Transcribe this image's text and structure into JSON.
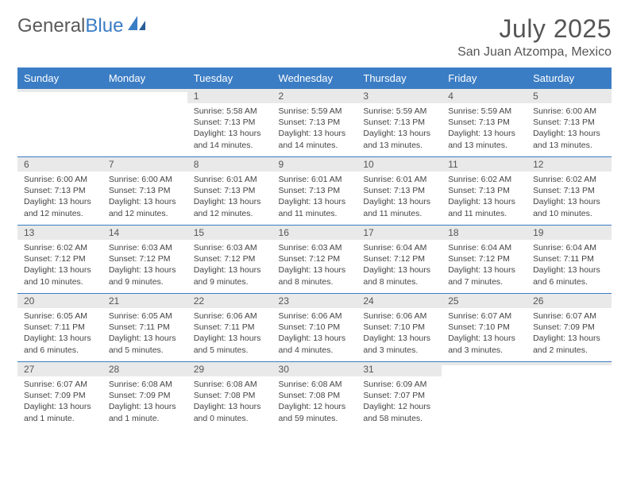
{
  "logo": {
    "text1": "General",
    "text2": "Blue"
  },
  "title": "July 2025",
  "location": "San Juan Atzompa, Mexico",
  "colors": {
    "header_bg": "#3b7dc4",
    "header_fg": "#ffffff",
    "daynum_bg": "#e9e9e9",
    "border": "#3b7dc4",
    "text": "#444444",
    "title_text": "#555555"
  },
  "fonts": {
    "title_size_pt": 24,
    "location_size_pt": 12,
    "day_header_size_pt": 10,
    "cell_size_pt": 8
  },
  "day_headers": [
    "Sunday",
    "Monday",
    "Tuesday",
    "Wednesday",
    "Thursday",
    "Friday",
    "Saturday"
  ],
  "weeks": [
    [
      {
        "n": "",
        "sr": "",
        "ss": "",
        "dl": ""
      },
      {
        "n": "",
        "sr": "",
        "ss": "",
        "dl": ""
      },
      {
        "n": "1",
        "sr": "Sunrise: 5:58 AM",
        "ss": "Sunset: 7:13 PM",
        "dl": "Daylight: 13 hours and 14 minutes."
      },
      {
        "n": "2",
        "sr": "Sunrise: 5:59 AM",
        "ss": "Sunset: 7:13 PM",
        "dl": "Daylight: 13 hours and 14 minutes."
      },
      {
        "n": "3",
        "sr": "Sunrise: 5:59 AM",
        "ss": "Sunset: 7:13 PM",
        "dl": "Daylight: 13 hours and 13 minutes."
      },
      {
        "n": "4",
        "sr": "Sunrise: 5:59 AM",
        "ss": "Sunset: 7:13 PM",
        "dl": "Daylight: 13 hours and 13 minutes."
      },
      {
        "n": "5",
        "sr": "Sunrise: 6:00 AM",
        "ss": "Sunset: 7:13 PM",
        "dl": "Daylight: 13 hours and 13 minutes."
      }
    ],
    [
      {
        "n": "6",
        "sr": "Sunrise: 6:00 AM",
        "ss": "Sunset: 7:13 PM",
        "dl": "Daylight: 13 hours and 12 minutes."
      },
      {
        "n": "7",
        "sr": "Sunrise: 6:00 AM",
        "ss": "Sunset: 7:13 PM",
        "dl": "Daylight: 13 hours and 12 minutes."
      },
      {
        "n": "8",
        "sr": "Sunrise: 6:01 AM",
        "ss": "Sunset: 7:13 PM",
        "dl": "Daylight: 13 hours and 12 minutes."
      },
      {
        "n": "9",
        "sr": "Sunrise: 6:01 AM",
        "ss": "Sunset: 7:13 PM",
        "dl": "Daylight: 13 hours and 11 minutes."
      },
      {
        "n": "10",
        "sr": "Sunrise: 6:01 AM",
        "ss": "Sunset: 7:13 PM",
        "dl": "Daylight: 13 hours and 11 minutes."
      },
      {
        "n": "11",
        "sr": "Sunrise: 6:02 AM",
        "ss": "Sunset: 7:13 PM",
        "dl": "Daylight: 13 hours and 11 minutes."
      },
      {
        "n": "12",
        "sr": "Sunrise: 6:02 AM",
        "ss": "Sunset: 7:13 PM",
        "dl": "Daylight: 13 hours and 10 minutes."
      }
    ],
    [
      {
        "n": "13",
        "sr": "Sunrise: 6:02 AM",
        "ss": "Sunset: 7:12 PM",
        "dl": "Daylight: 13 hours and 10 minutes."
      },
      {
        "n": "14",
        "sr": "Sunrise: 6:03 AM",
        "ss": "Sunset: 7:12 PM",
        "dl": "Daylight: 13 hours and 9 minutes."
      },
      {
        "n": "15",
        "sr": "Sunrise: 6:03 AM",
        "ss": "Sunset: 7:12 PM",
        "dl": "Daylight: 13 hours and 9 minutes."
      },
      {
        "n": "16",
        "sr": "Sunrise: 6:03 AM",
        "ss": "Sunset: 7:12 PM",
        "dl": "Daylight: 13 hours and 8 minutes."
      },
      {
        "n": "17",
        "sr": "Sunrise: 6:04 AM",
        "ss": "Sunset: 7:12 PM",
        "dl": "Daylight: 13 hours and 8 minutes."
      },
      {
        "n": "18",
        "sr": "Sunrise: 6:04 AM",
        "ss": "Sunset: 7:12 PM",
        "dl": "Daylight: 13 hours and 7 minutes."
      },
      {
        "n": "19",
        "sr": "Sunrise: 6:04 AM",
        "ss": "Sunset: 7:11 PM",
        "dl": "Daylight: 13 hours and 6 minutes."
      }
    ],
    [
      {
        "n": "20",
        "sr": "Sunrise: 6:05 AM",
        "ss": "Sunset: 7:11 PM",
        "dl": "Daylight: 13 hours and 6 minutes."
      },
      {
        "n": "21",
        "sr": "Sunrise: 6:05 AM",
        "ss": "Sunset: 7:11 PM",
        "dl": "Daylight: 13 hours and 5 minutes."
      },
      {
        "n": "22",
        "sr": "Sunrise: 6:06 AM",
        "ss": "Sunset: 7:11 PM",
        "dl": "Daylight: 13 hours and 5 minutes."
      },
      {
        "n": "23",
        "sr": "Sunrise: 6:06 AM",
        "ss": "Sunset: 7:10 PM",
        "dl": "Daylight: 13 hours and 4 minutes."
      },
      {
        "n": "24",
        "sr": "Sunrise: 6:06 AM",
        "ss": "Sunset: 7:10 PM",
        "dl": "Daylight: 13 hours and 3 minutes."
      },
      {
        "n": "25",
        "sr": "Sunrise: 6:07 AM",
        "ss": "Sunset: 7:10 PM",
        "dl": "Daylight: 13 hours and 3 minutes."
      },
      {
        "n": "26",
        "sr": "Sunrise: 6:07 AM",
        "ss": "Sunset: 7:09 PM",
        "dl": "Daylight: 13 hours and 2 minutes."
      }
    ],
    [
      {
        "n": "27",
        "sr": "Sunrise: 6:07 AM",
        "ss": "Sunset: 7:09 PM",
        "dl": "Daylight: 13 hours and 1 minute."
      },
      {
        "n": "28",
        "sr": "Sunrise: 6:08 AM",
        "ss": "Sunset: 7:09 PM",
        "dl": "Daylight: 13 hours and 1 minute."
      },
      {
        "n": "29",
        "sr": "Sunrise: 6:08 AM",
        "ss": "Sunset: 7:08 PM",
        "dl": "Daylight: 13 hours and 0 minutes."
      },
      {
        "n": "30",
        "sr": "Sunrise: 6:08 AM",
        "ss": "Sunset: 7:08 PM",
        "dl": "Daylight: 12 hours and 59 minutes."
      },
      {
        "n": "31",
        "sr": "Sunrise: 6:09 AM",
        "ss": "Sunset: 7:07 PM",
        "dl": "Daylight: 12 hours and 58 minutes."
      },
      {
        "n": "",
        "sr": "",
        "ss": "",
        "dl": ""
      },
      {
        "n": "",
        "sr": "",
        "ss": "",
        "dl": ""
      }
    ]
  ]
}
